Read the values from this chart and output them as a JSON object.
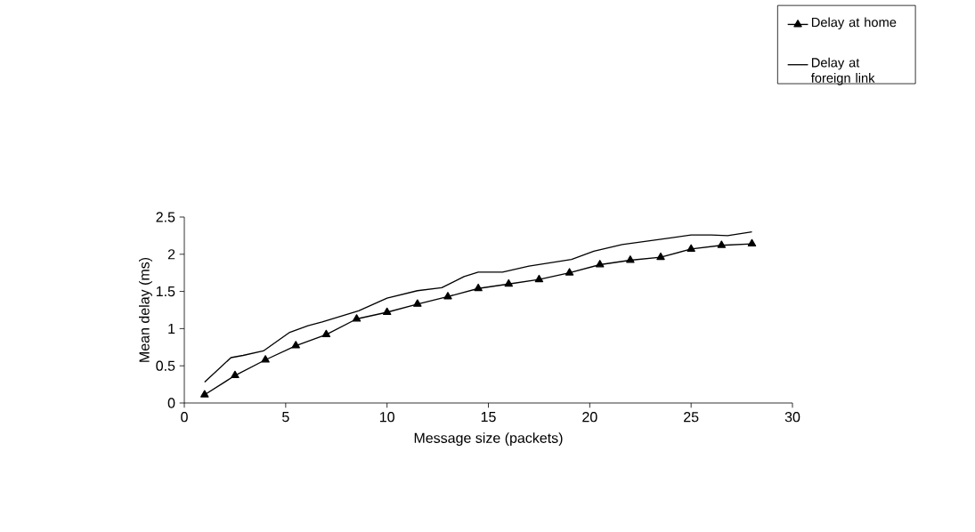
{
  "chart_data": {
    "type": "line",
    "xlabel": "Message size (packets)",
    "ylabel": "Mean delay (ms)",
    "xlim": [
      0,
      30
    ],
    "ylim": [
      0,
      2.5
    ],
    "xticks": [
      0,
      5,
      10,
      15,
      20,
      25,
      30
    ],
    "yticks": [
      0,
      0.5,
      1,
      1.5,
      2,
      2.5
    ],
    "legend": "top right",
    "grid": false,
    "series": [
      {
        "name": "Delay at home",
        "color": "#000000",
        "marker": "triangle",
        "x": [
          1,
          2.5,
          4,
          5.5,
          7,
          8.5,
          10,
          11.5,
          13,
          14.5,
          16,
          17.5,
          19,
          20.5,
          22,
          23.5,
          25,
          26.5,
          28
        ],
        "values": [
          0.11,
          0.37,
          0.58,
          0.77,
          0.92,
          1.13,
          1.22,
          1.33,
          1.43,
          1.54,
          1.6,
          1.66,
          1.75,
          1.86,
          1.92,
          1.96,
          2.07,
          2.12,
          2.14
        ]
      },
      {
        "name": "Delay at foreign link",
        "color": "#000000",
        "marker": "none",
        "x": [
          1,
          2.3,
          2.9,
          3.9,
          5.2,
          6.1,
          6.8,
          8.6,
          10,
          11.5,
          12.7,
          13.8,
          14.5,
          15.7,
          17,
          19.1,
          20.2,
          21.6,
          24,
          25,
          26,
          26.8,
          28
        ],
        "values": [
          0.28,
          0.61,
          0.64,
          0.7,
          0.95,
          1.04,
          1.09,
          1.24,
          1.41,
          1.51,
          1.55,
          1.7,
          1.76,
          1.76,
          1.84,
          1.93,
          2.04,
          2.13,
          2.22,
          2.26,
          2.26,
          2.25,
          2.3
        ]
      }
    ]
  }
}
